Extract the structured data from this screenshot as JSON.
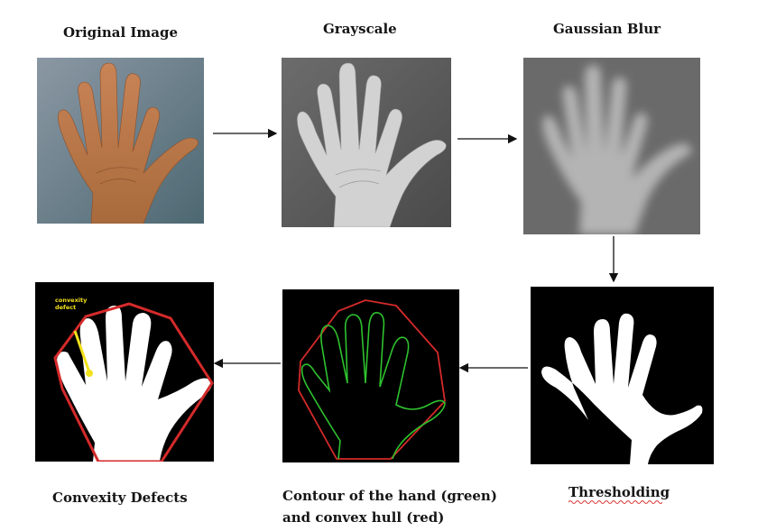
{
  "steps": [
    {
      "id": "original",
      "label": "Original Image"
    },
    {
      "id": "grayscale",
      "label": "Grayscale"
    },
    {
      "id": "gaussian",
      "label": "Gaussian Blur"
    },
    {
      "id": "threshold",
      "label": "Thresholding"
    },
    {
      "id": "contour",
      "label_line1": "Contour of the hand (green)",
      "label_line2": "and convex hull (red)"
    },
    {
      "id": "defects",
      "label": "Convexity Defects",
      "annotation": "convexity defect"
    }
  ],
  "colors": {
    "contour": "#2ec22e",
    "hull": "#d42a2a",
    "defect": "#f2e21b",
    "background_dark": "#000000",
    "hand_skin": "#b9794a"
  }
}
